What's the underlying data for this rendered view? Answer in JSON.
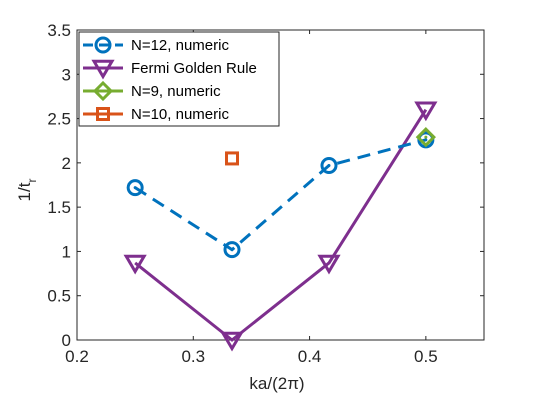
{
  "chart_data": {
    "type": "line",
    "xlabel": "ka/(2π)",
    "ylabel_main": "1/t",
    "ylabel_sub": "r",
    "xlim": [
      0.2,
      0.55
    ],
    "ylim": [
      0,
      3.5
    ],
    "xticks": [
      0.2,
      0.3,
      0.4,
      0.5
    ],
    "yticks": [
      0,
      0.5,
      1,
      1.5,
      2,
      2.5,
      3,
      3.5
    ],
    "xtick_labels": [
      "0.2",
      "0.3",
      "0.4",
      "0.5"
    ],
    "ytick_labels": [
      "0",
      "0.5",
      "1",
      "1.5",
      "2",
      "2.5",
      "3",
      "3.5"
    ],
    "grid": false,
    "legend_position": "top-left",
    "series": [
      {
        "name": "N=12, numeric",
        "color": "#0072BD",
        "line": "dashed",
        "marker": "circle",
        "x": [
          0.25,
          0.3333,
          0.4167,
          0.5
        ],
        "y": [
          1.72,
          1.02,
          1.97,
          2.26
        ]
      },
      {
        "name": "Fermi Golden Rule",
        "color": "#7E2F8E",
        "line": "solid",
        "marker": "triangle-down",
        "x": [
          0.25,
          0.3333,
          0.4167,
          0.5
        ],
        "y": [
          0.87,
          0.0,
          0.87,
          2.6
        ]
      },
      {
        "name": "N=9, numeric",
        "color": "#77AC30",
        "line": "none",
        "marker": "diamond",
        "x": [
          0.5
        ],
        "y": [
          2.29
        ]
      },
      {
        "name": "N=10, numeric",
        "color": "#D95319",
        "line": "none",
        "marker": "square",
        "x": [
          0.3333
        ],
        "y": [
          2.05
        ]
      }
    ]
  }
}
